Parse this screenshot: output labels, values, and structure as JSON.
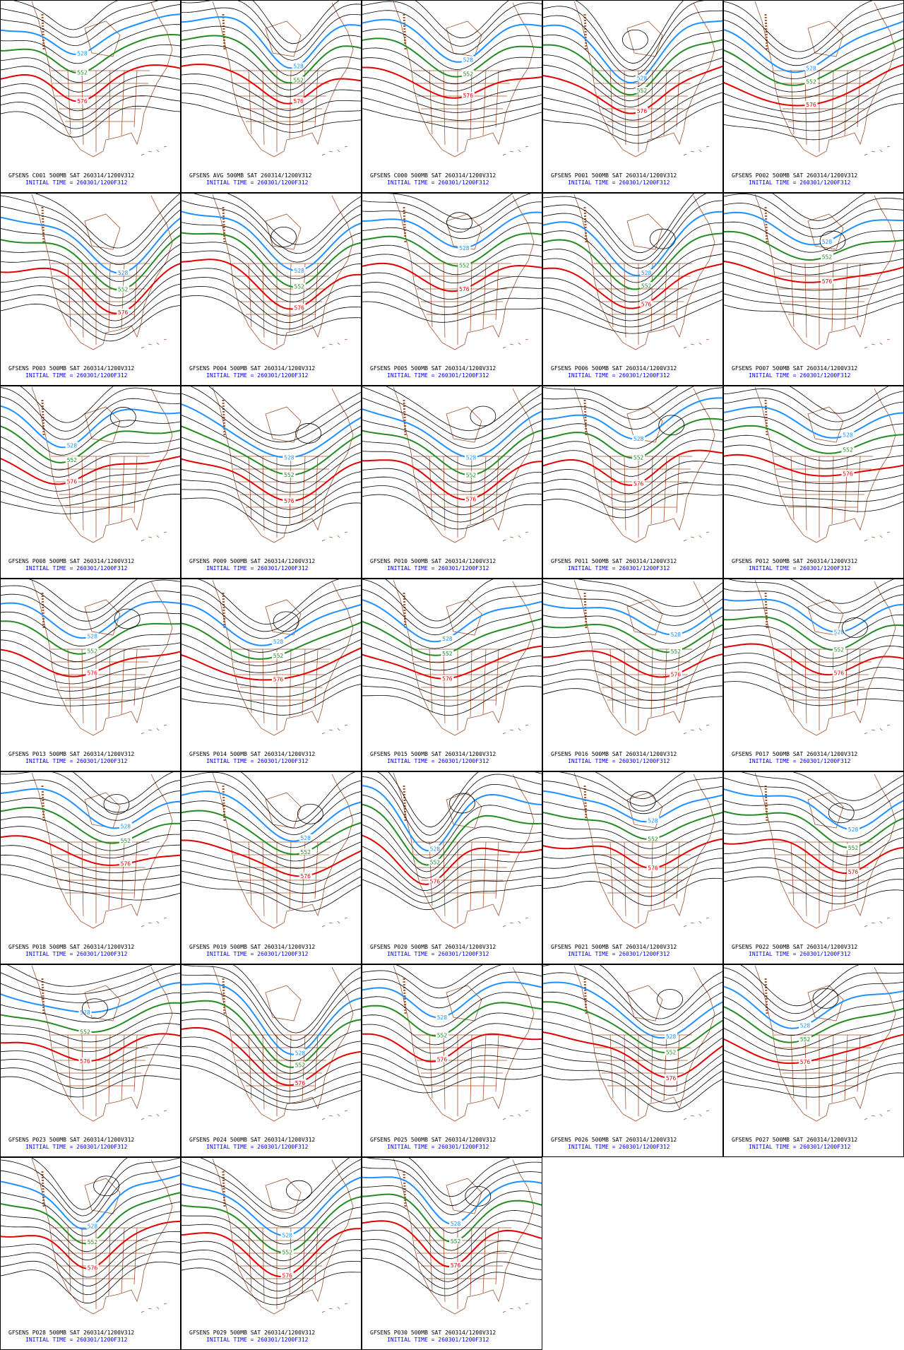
{
  "panels": [
    {
      "title": "GFSENS C001 500MB SAT 260314/1200V312",
      "subtitle": "INITIAL TIME = 260301/1200F312"
    },
    {
      "title": "GFSENS AVG 500MB SAT 260314/1200V312",
      "subtitle": "INITIAL TIME = 260301/1200F312"
    },
    {
      "title": "GFSENS C000 500MB SAT 260314/1200V312",
      "subtitle": "INITIAL TIME = 260301/1200F312"
    },
    {
      "title": "GFSENS P001 500MB SAT 260314/1200V312",
      "subtitle": "INITIAL TIME = 260301/1200F312"
    },
    {
      "title": "GFSENS P002 500MB SAT 260314/1200V312",
      "subtitle": "INITIAL TIME = 260301/1200F312"
    },
    {
      "title": "GFSENS P003 500MB SAT 260314/1200V312",
      "subtitle": "INITIAL TIME = 260301/1200F312"
    },
    {
      "title": "GFSENS P004 500MB SAT 260314/1200V312",
      "subtitle": "INITIAL TIME = 260301/1200F312"
    },
    {
      "title": "GFSENS P005 500MB SAT 260314/1200V312",
      "subtitle": "INITIAL TIME = 260301/1200F312"
    },
    {
      "title": "GFSENS P006 500MB SAT 260314/1200V312",
      "subtitle": "INITIAL TIME = 260301/1200F312"
    },
    {
      "title": "GFSENS P007 500MB SAT 260314/1200V312",
      "subtitle": "INITIAL TIME = 260301/1200F312"
    },
    {
      "title": "GFSENS P008 500MB SAT 260314/1200V312",
      "subtitle": "INITIAL TIME = 260301/1200F312"
    },
    {
      "title": "GFSENS P009 500MB SAT 260314/1200V312",
      "subtitle": "INITIAL TIME = 260301/1200F312"
    },
    {
      "title": "GFSENS P010 500MB SAT 260314/1200V312",
      "subtitle": "INITIAL TIME = 260301/1200F312"
    },
    {
      "title": "GFSENS P011 500MB SAT 260314/1200V312",
      "subtitle": "INITIAL TIME = 260301/1200F312"
    },
    {
      "title": "GFSENS P012 500MB SAT 260314/1200V312",
      "subtitle": "INITIAL TIME = 260301/1200F312"
    },
    {
      "title": "GFSENS P013 500MB SAT 260314/1200V312",
      "subtitle": "INITIAL TIME = 260301/1200F312"
    },
    {
      "title": "GFSENS P014 500MB SAT 260314/1200V312",
      "subtitle": "INITIAL TIME = 260301/1200F312"
    },
    {
      "title": "GFSENS P015 500MB SAT 260314/1200V312",
      "subtitle": "INITIAL TIME = 260301/1200F312"
    },
    {
      "title": "GFSENS P016 500MB SAT 260314/1200V312",
      "subtitle": "INITIAL TIME = 260301/1200F312"
    },
    {
      "title": "GFSENS P017 500MB SAT 260314/1200V312",
      "subtitle": "INITIAL TIME = 260301/1200F312"
    },
    {
      "title": "GFSENS P018 500MB SAT 260314/1200V312",
      "subtitle": "INITIAL TIME = 260301/1200F312"
    },
    {
      "title": "GFSENS P019 500MB SAT 260314/1200V312",
      "subtitle": "INITIAL TIME = 260301/1200F312"
    },
    {
      "title": "GFSENS P020 500MB SAT 260314/1200V312",
      "subtitle": "INITIAL TIME = 260301/1200F312"
    },
    {
      "title": "GFSENS P021 500MB SAT 260314/1200V312",
      "subtitle": "INITIAL TIME = 260301/1200F312"
    },
    {
      "title": "GFSENS P022 500MB SAT 260314/1200V312",
      "subtitle": "INITIAL TIME = 260301/1200F312"
    },
    {
      "title": "GFSENS P023 500MB SAT 260314/1200V312",
      "subtitle": "INITIAL TIME = 260301/1200F312"
    },
    {
      "title": "GFSENS P024 500MB SAT 260314/1200V312",
      "subtitle": "INITIAL TIME = 260301/1200F312"
    },
    {
      "title": "GFSENS P025 500MB SAT 260314/1200V312",
      "subtitle": "INITIAL TIME = 260301/1200F312"
    },
    {
      "title": "GFSENS P026 500MB SAT 260314/1200V312",
      "subtitle": "INITIAL TIME = 260301/1200F312"
    },
    {
      "title": "GFSENS P027 500MB SAT 260314/1200V312",
      "subtitle": "INITIAL TIME = 260301/1200F312"
    },
    {
      "title": "GFSENS P028 500MB SAT 260314/1200V312",
      "subtitle": "INITIAL TIME = 260301/1200F312"
    },
    {
      "title": "GFSENS P029 500MB SAT 260314/1200V312",
      "subtitle": "INITIAL TIME = 260301/1200F312"
    },
    {
      "title": "GFSENS P030 500MB SAT 260314/1200V312",
      "subtitle": "INITIAL TIME = 260301/1200F312"
    }
  ],
  "contour_labels": [
    "528",
    "552",
    "576"
  ]
}
